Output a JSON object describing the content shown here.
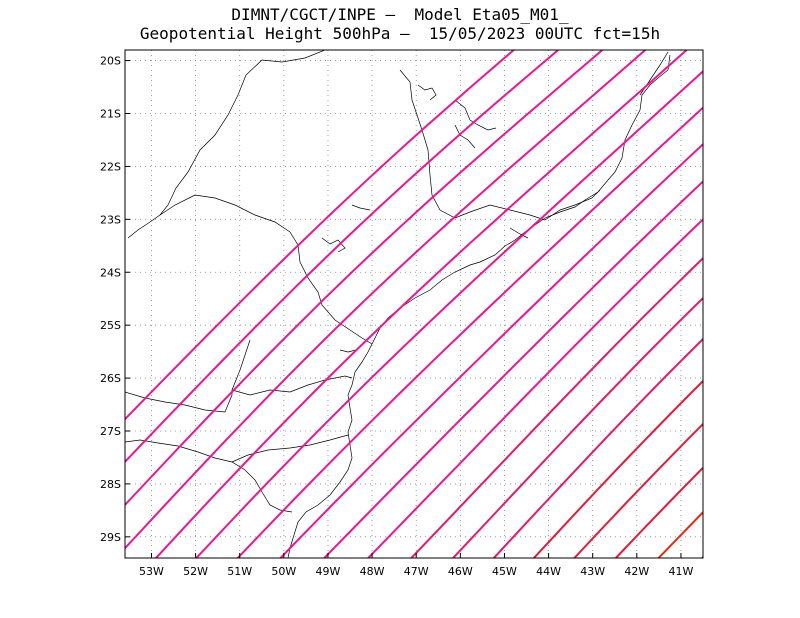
{
  "title": {
    "line1": "DIMNT/CGCT/INPE –  Model Eta05_M01_",
    "line2": "Geopotential Height 500hPa –  15/05/2023 00UTC fct=15h"
  },
  "map": {
    "lon_range": [
      -53.6,
      -40.5
    ],
    "lat_range": [
      -29.4,
      -19.8
    ],
    "lon_ticks": [
      "53W",
      "52W",
      "51W",
      "50W",
      "49W",
      "48W",
      "47W",
      "46W",
      "45W",
      "44W",
      "43W",
      "42W",
      "41W"
    ],
    "lat_ticks": [
      "20S",
      "21S",
      "22S",
      "23S",
      "24S",
      "25S",
      "26S",
      "27S",
      "28S",
      "29S"
    ],
    "grid": true,
    "contour_colors": [
      "#ee1590",
      "#e81868",
      "#e51a3a",
      "#e82a12",
      "#f0500a",
      "#f56a08"
    ]
  }
}
